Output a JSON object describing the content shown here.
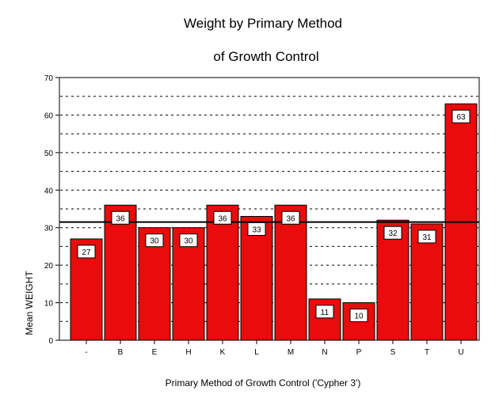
{
  "chart_data": {
    "type": "bar",
    "title_lines": [
      "Weight by Primary Method",
      "of Growth Control"
    ],
    "xlabel": "Primary Method of Growth Control ('Cypher 3')",
    "ylabel": "Mean WEIGHT",
    "categories": [
      "-",
      "B",
      "E",
      "H",
      "K",
      "L",
      "M",
      "N",
      "P",
      "S",
      "T",
      "U"
    ],
    "values": [
      27,
      36,
      30,
      30,
      36,
      33,
      36,
      11,
      10,
      32,
      31,
      63
    ],
    "data_labels": [
      "27",
      "36",
      "30",
      "30",
      "36",
      "33",
      "36",
      "11",
      "10",
      "32",
      "31",
      "63"
    ],
    "y_ticks": [
      0,
      10,
      20,
      30,
      40,
      50,
      60,
      70
    ],
    "ylim": [
      0,
      70
    ],
    "reference_line": 31.5,
    "grid": "horizontal dashed",
    "bar_color": "#e80c0c"
  }
}
